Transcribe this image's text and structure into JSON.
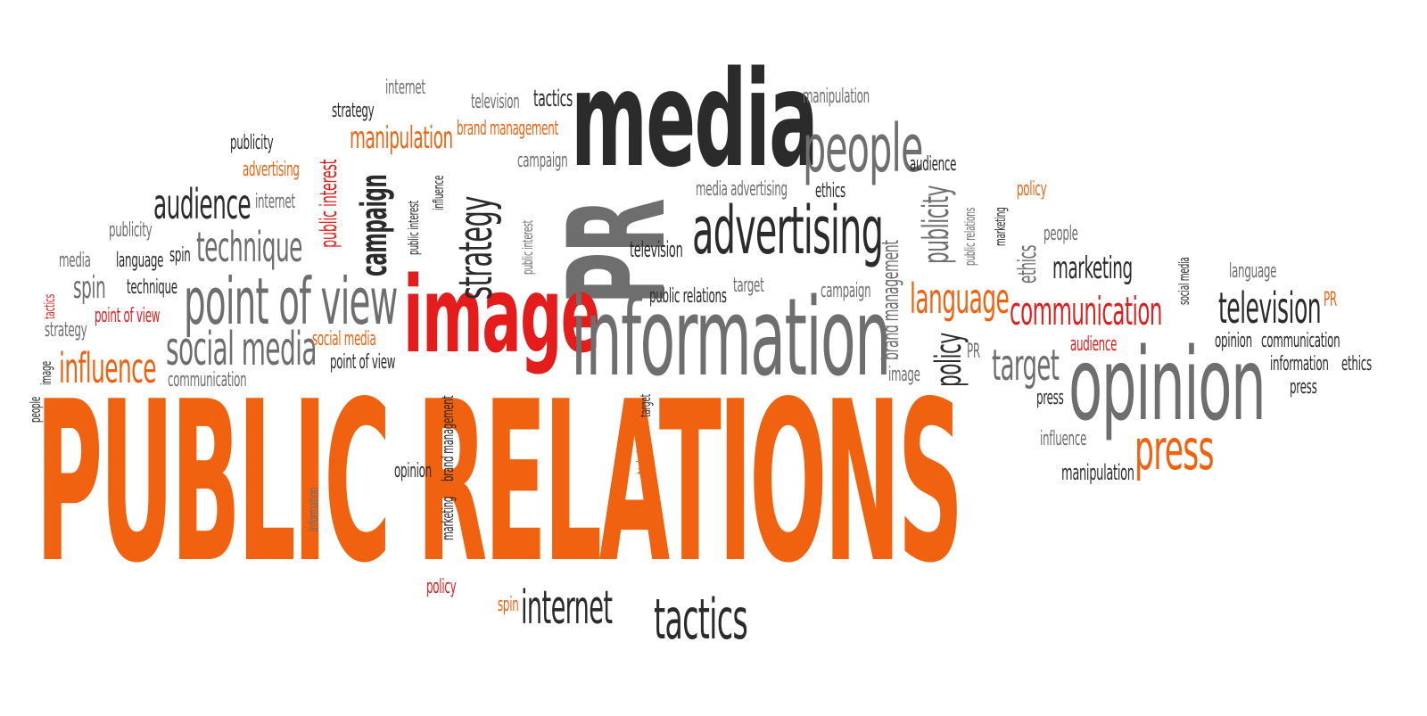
{
  "words": {
    "public_relations": "PUBLIC RELATIONS",
    "media": "media",
    "pr_big": "PR",
    "image": "image",
    "information": "information",
    "opinion": "opinion",
    "advertising_big": "advertising",
    "people_big": "people",
    "point_of_view_big": "point of view",
    "social_media_big": "social media",
    "technique_big": "technique",
    "audience_big": "audience",
    "influence_big": "influence",
    "strategy_v": "strategy",
    "campaign_v": "campaign",
    "public_interest_v": "public interest",
    "public_interest_v2": "public interest",
    "public_interest_v3": "public interest",
    "influence_v": "influence",
    "brand_management_v": "brand management",
    "brand_management_v2": "brand management",
    "marketing_v": "marketing",
    "technique_v": "technique",
    "target_v": "target",
    "information_v": "information",
    "policy_v": "policy",
    "publicity_v": "publicity",
    "public_relations_v": "public relations",
    "marketing_v2": "marketing",
    "ethics_v": "ethics",
    "social_media_v": "social media",
    "people_v": "people",
    "image_v": "image",
    "tactics_v": "tactics",
    "tactics_bottom": "tactics",
    "internet_bottom": "internet",
    "spin_bottom": "spin",
    "policy_bottom": "policy",
    "opinion_mid": "opinion",
    "press_big": "press",
    "target_big": "target",
    "language_big": "language",
    "communication_big": "communication",
    "television_big": "television",
    "marketing_big": "marketing",
    "internet_top": "internet",
    "television_top": "television",
    "tactics_top": "tactics",
    "strategy_top": "strategy",
    "manipulation_top": "manipulation",
    "manipulation_right": "manipulation",
    "brand_management_top": "brand management",
    "publicity_top": "publicity",
    "advertising_small": "advertising",
    "campaign_small": "campaign",
    "internet_small": "internet",
    "publicity_small": "publicity",
    "media_small": "media",
    "language_small": "language",
    "spin_small": "spin",
    "technique_small": "technique",
    "point_of_view_small": "point of view",
    "strategy_small": "strategy",
    "social_media_small": "social media",
    "point_of_view_small2": "point of view",
    "communication_small": "communication",
    "media_advertising": "media advertising",
    "ethics_small": "ethics",
    "audience_small": "audience",
    "television_mid": "television",
    "public_relations_small": "public relations",
    "target_small": "target",
    "campaign_mid": "campaign",
    "image_small": "image",
    "pr_small": "PR",
    "policy_small": "policy",
    "people_small": "people",
    "language_right": "language",
    "pr_right": "PR",
    "audience_right": "audience",
    "opinion_small": "opinion",
    "communication_right": "communication",
    "information_small": "information",
    "ethics_right": "ethics",
    "press_small": "press",
    "press_small2": "press",
    "influence_right": "influence"
  },
  "colors": {
    "dark": "#2b2b2b",
    "gray": "#6e6e6e",
    "orange": "#f0620f",
    "red": "#e51c1c",
    "background": "#ffffff"
  }
}
